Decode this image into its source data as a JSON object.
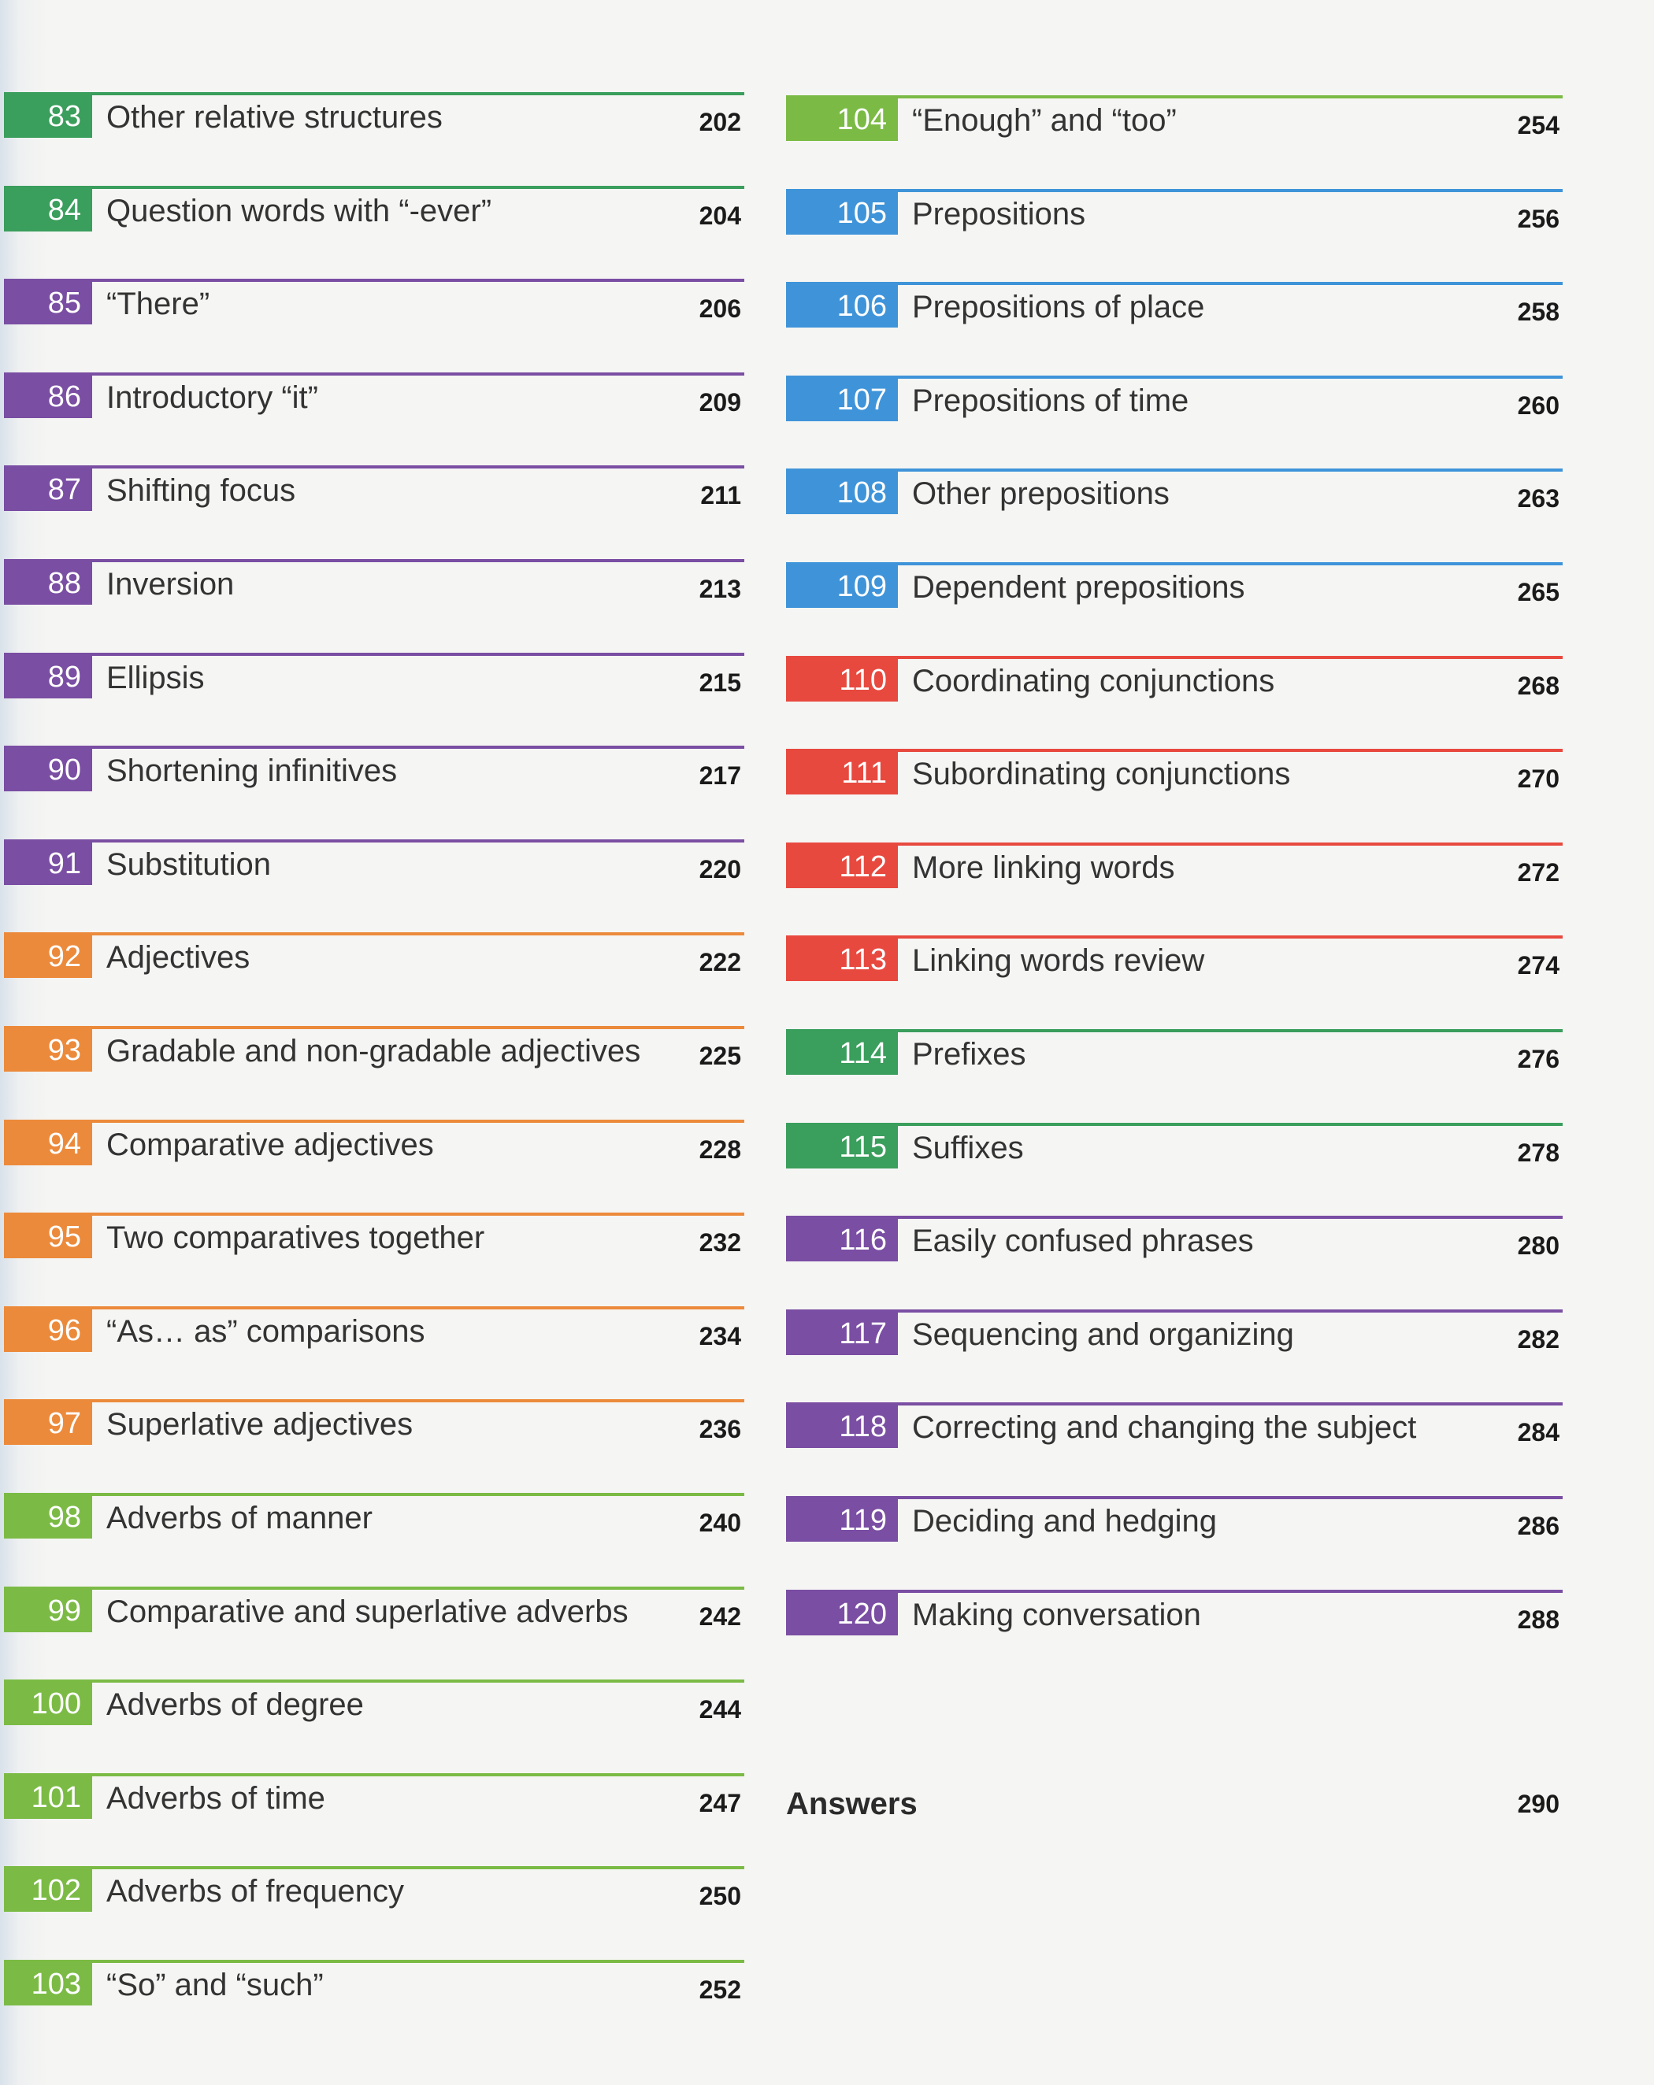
{
  "colors": {
    "green": "#3a9e5c",
    "purple": "#7a4ea3",
    "orange": "#ec8a3b",
    "lime": "#7bbb45",
    "blue": "#3f94d9",
    "red": "#e8493f"
  },
  "left_column": [
    {
      "num": "83",
      "title": "Other relative structures",
      "page": "202",
      "color": "#3a9e5c"
    },
    {
      "num": "84",
      "title": "Question words with “-ever”",
      "page": "204",
      "color": "#3a9e5c"
    },
    {
      "num": "85",
      "title": "“There”",
      "page": "206",
      "color": "#7a4ea3"
    },
    {
      "num": "86",
      "title": "Introductory “it”",
      "page": "209",
      "color": "#7a4ea3"
    },
    {
      "num": "87",
      "title": "Shifting focus",
      "page": "211",
      "color": "#7a4ea3"
    },
    {
      "num": "88",
      "title": "Inversion",
      "page": "213",
      "color": "#7a4ea3"
    },
    {
      "num": "89",
      "title": "Ellipsis",
      "page": "215",
      "color": "#7a4ea3"
    },
    {
      "num": "90",
      "title": "Shortening infinitives",
      "page": "217",
      "color": "#7a4ea3"
    },
    {
      "num": "91",
      "title": "Substitution",
      "page": "220",
      "color": "#7a4ea3"
    },
    {
      "num": "92",
      "title": "Adjectives",
      "page": "222",
      "color": "#ec8a3b"
    },
    {
      "num": "93",
      "title": "Gradable and non-gradable adjectives",
      "page": "225",
      "color": "#ec8a3b"
    },
    {
      "num": "94",
      "title": "Comparative adjectives",
      "page": "228",
      "color": "#ec8a3b"
    },
    {
      "num": "95",
      "title": "Two comparatives together",
      "page": "232",
      "color": "#ec8a3b"
    },
    {
      "num": "96",
      "title": "“As… as” comparisons",
      "page": "234",
      "color": "#ec8a3b"
    },
    {
      "num": "97",
      "title": "Superlative adjectives",
      "page": "236",
      "color": "#ec8a3b"
    },
    {
      "num": "98",
      "title": "Adverbs of manner",
      "page": "240",
      "color": "#7bbb45"
    },
    {
      "num": "99",
      "title": "Comparative and superlative adverbs",
      "page": "242",
      "color": "#7bbb45"
    },
    {
      "num": "100",
      "title": "Adverbs of degree",
      "page": "244",
      "color": "#7bbb45"
    },
    {
      "num": "101",
      "title": "Adverbs of time",
      "page": "247",
      "color": "#7bbb45"
    },
    {
      "num": "102",
      "title": "Adverbs of frequency",
      "page": "250",
      "color": "#7bbb45"
    },
    {
      "num": "103",
      "title": "“So” and “such”",
      "page": "252",
      "color": "#7bbb45"
    }
  ],
  "right_column": [
    {
      "num": "104",
      "title": "“Enough” and “too”",
      "page": "254",
      "color": "#7bbb45"
    },
    {
      "num": "105",
      "title": "Prepositions",
      "page": "256",
      "color": "#3f94d9"
    },
    {
      "num": "106",
      "title": "Prepositions of place",
      "page": "258",
      "color": "#3f94d9"
    },
    {
      "num": "107",
      "title": "Prepositions of time",
      "page": "260",
      "color": "#3f94d9"
    },
    {
      "num": "108",
      "title": "Other prepositions",
      "page": "263",
      "color": "#3f94d9"
    },
    {
      "num": "109",
      "title": "Dependent prepositions",
      "page": "265",
      "color": "#3f94d9"
    },
    {
      "num": "110",
      "title": "Coordinating conjunctions",
      "page": "268",
      "color": "#e8493f"
    },
    {
      "num": "111",
      "title": "Subordinating conjunctions",
      "page": "270",
      "color": "#e8493f"
    },
    {
      "num": "112",
      "title": "More linking words",
      "page": "272",
      "color": "#e8493f"
    },
    {
      "num": "113",
      "title": "Linking words review",
      "page": "274",
      "color": "#e8493f"
    },
    {
      "num": "114",
      "title": "Prefixes",
      "page": "276",
      "color": "#3a9e5c"
    },
    {
      "num": "115",
      "title": "Suffixes",
      "page": "278",
      "color": "#3a9e5c"
    },
    {
      "num": "116",
      "title": "Easily confused phrases",
      "page": "280",
      "color": "#7a4ea3"
    },
    {
      "num": "117",
      "title": "Sequencing and organizing",
      "page": "282",
      "color": "#7a4ea3"
    },
    {
      "num": "118",
      "title": "Correcting and changing the subject",
      "page": "284",
      "color": "#7a4ea3"
    },
    {
      "num": "119",
      "title": "Deciding and hedging",
      "page": "286",
      "color": "#7a4ea3"
    },
    {
      "num": "120",
      "title": "Making conversation",
      "page": "288",
      "color": "#7a4ea3"
    }
  ],
  "answers": {
    "label": "Answers",
    "page": "290"
  }
}
